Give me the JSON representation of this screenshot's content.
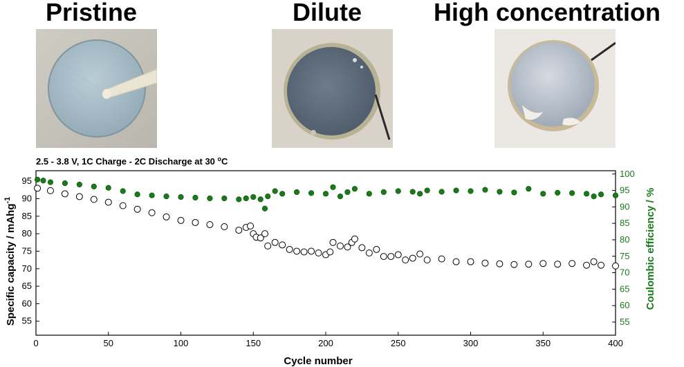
{
  "photos": [
    {
      "label": "Pristine"
    },
    {
      "label": "Dilute"
    },
    {
      "label": "High concentration"
    }
  ],
  "chart_data": {
    "type": "scatter",
    "title": "2.5 - 3.8 V, 1C Charge - 2C Discharge at 30 °C",
    "condition": {
      "text": "2.5 - 3.8 V, 1C Charge - 2C Discharge at 30 ",
      "sup": "o",
      "unit": "C"
    },
    "xlabel": "Cycle number",
    "ylabel_left": {
      "text": "Specific capacity / mAhg",
      "sup": "-1"
    },
    "ylabel_right": "Coulombic efficiency / %",
    "xlim": [
      0,
      400
    ],
    "ylim_left": [
      51,
      98
    ],
    "ylim_right": [
      51,
      101
    ],
    "x_ticks": [
      0,
      50,
      100,
      150,
      200,
      250,
      300,
      350,
      400
    ],
    "y_ticks_left": [
      55,
      60,
      65,
      70,
      75,
      80,
      85,
      90,
      95
    ],
    "y_ticks_right": [
      55,
      60,
      65,
      70,
      75,
      80,
      85,
      90,
      95,
      100
    ],
    "colors": {
      "capacity": "#000000",
      "efficiency": "#1a7a1a",
      "right_axis": "#1a7a1a"
    },
    "series": [
      {
        "name": "Specific capacity",
        "axis": "left",
        "marker": "open-circle",
        "x": [
          1,
          10,
          20,
          30,
          40,
          50,
          60,
          70,
          80,
          90,
          100,
          110,
          120,
          130,
          140,
          145,
          148,
          150,
          152,
          155,
          158,
          160,
          165,
          170,
          175,
          180,
          185,
          190,
          195,
          200,
          203,
          205,
          210,
          215,
          218,
          220,
          225,
          230,
          235,
          240,
          245,
          250,
          255,
          260,
          265,
          270,
          280,
          290,
          300,
          310,
          320,
          330,
          340,
          350,
          360,
          370,
          380,
          385,
          390,
          400
        ],
        "y": [
          93,
          92.3,
          91.4,
          90.6,
          89.8,
          89,
          88,
          87,
          86,
          84.8,
          83.8,
          83.2,
          82.6,
          82,
          81,
          81.8,
          82.2,
          80,
          79,
          78.8,
          80,
          76.5,
          77.5,
          76.8,
          75.5,
          75,
          74.8,
          75,
          74.5,
          74,
          74.8,
          77.5,
          76.5,
          76.2,
          77.5,
          78.5,
          76,
          74.5,
          75.5,
          73.5,
          73.5,
          74,
          72.5,
          73,
          74.2,
          72.5,
          72.8,
          72,
          72,
          71.6,
          71.4,
          71.2,
          71.3,
          71.5,
          71.3,
          71.5,
          71,
          72,
          71,
          70.8
        ]
      },
      {
        "name": "Coulombic efficiency",
        "axis": "right",
        "marker": "filled-circle",
        "x": [
          1,
          5,
          10,
          20,
          30,
          40,
          50,
          60,
          70,
          80,
          90,
          100,
          110,
          120,
          130,
          140,
          145,
          150,
          155,
          158,
          160,
          165,
          170,
          180,
          190,
          200,
          205,
          210,
          215,
          220,
          230,
          240,
          250,
          260,
          265,
          270,
          280,
          290,
          300,
          310,
          320,
          330,
          340,
          350,
          360,
          370,
          380,
          385,
          390,
          400
        ],
        "y": [
          98.3,
          98,
          97.5,
          97.2,
          96.8,
          96.2,
          95.8,
          94.8,
          93.8,
          93.5,
          93.2,
          93,
          92.8,
          92.6,
          92.6,
          92.3,
          92.6,
          93,
          92.3,
          89.5,
          93.2,
          94.8,
          94,
          94.5,
          94.2,
          94,
          96,
          93.2,
          94.5,
          95.5,
          94,
          94.5,
          94.8,
          94.6,
          94,
          95,
          94.6,
          95,
          94.8,
          95.2,
          94.6,
          94.4,
          95.5,
          94,
          94.3,
          94.2,
          94,
          93.2,
          93.8,
          93.5
        ]
      }
    ]
  }
}
